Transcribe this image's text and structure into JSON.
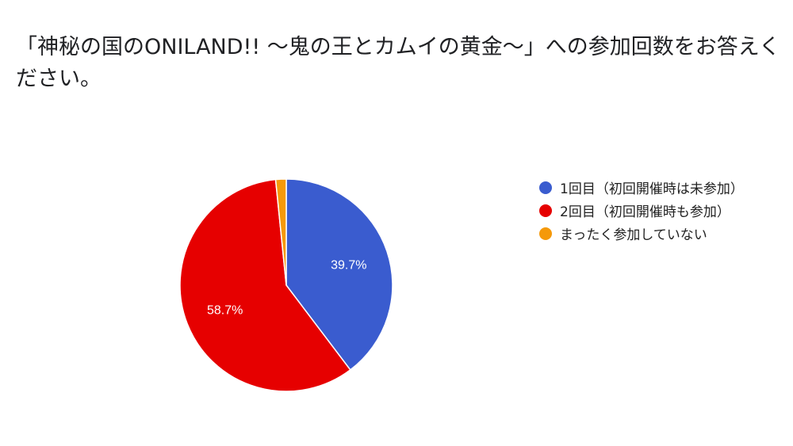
{
  "title": "「神秘の国のONILAND!! 〜鬼の王とカムイの黄金〜」への参加回数をお答えください。",
  "chart_data": {
    "type": "pie",
    "title": "「神秘の国のONILAND!! 〜鬼の王とカムイの黄金〜」への参加回数をお答えください。",
    "start_angle_deg": 90,
    "direction": "clockwise",
    "slices": [
      {
        "label": "1回目（初回開催時は未参加）",
        "value": 39.7,
        "display": "39.7%",
        "color": "#3a5ccf"
      },
      {
        "label": "2回目（初回開催時も参加）",
        "value": 58.7,
        "display": "58.7%",
        "color": "#e60000"
      },
      {
        "label": "まったく参加していない",
        "value": 1.6,
        "display": "",
        "color": "#f5990a"
      }
    ],
    "legend_position": "right"
  }
}
